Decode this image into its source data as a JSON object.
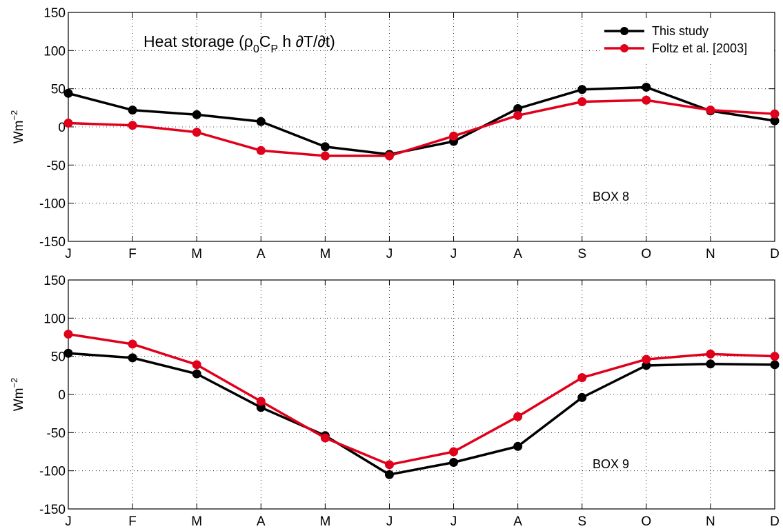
{
  "chart_data": [
    {
      "type": "line",
      "title_parts": {
        "main": "Heat storage (ρ",
        "sub1": "0",
        "c": "C",
        "sub2": "P",
        "rest": "h ∂T/∂t)"
      },
      "annotation": "BOX 8",
      "ylabel_base": "Wm",
      "ylabel_exp": "−2",
      "categories": [
        "J",
        "F",
        "M",
        "A",
        "M",
        "J",
        "J",
        "A",
        "S",
        "O",
        "N",
        "D"
      ],
      "ylim": [
        -150,
        150
      ],
      "yticks": [
        -150,
        -100,
        -50,
        0,
        50,
        100,
        150
      ],
      "grid": true,
      "legend": {
        "placement": "top-right"
      },
      "series": [
        {
          "name": "This study",
          "color": "#000000",
          "values": [
            44,
            22,
            16,
            7,
            -26,
            -36,
            -19,
            24,
            49,
            52,
            21,
            8
          ]
        },
        {
          "name": "Foltz et al. [2003]",
          "color": "#e0001b",
          "values": [
            5,
            2,
            -7,
            -31,
            -38,
            -38,
            -12,
            15,
            33,
            35,
            22,
            17
          ]
        }
      ]
    },
    {
      "type": "line",
      "annotation": "BOX 9",
      "ylabel_base": "Wm",
      "ylabel_exp": "−2",
      "categories": [
        "J",
        "F",
        "M",
        "A",
        "M",
        "J",
        "J",
        "A",
        "S",
        "O",
        "N",
        "D"
      ],
      "ylim": [
        -150,
        150
      ],
      "yticks": [
        -150,
        -100,
        -50,
        0,
        50,
        100,
        150
      ],
      "grid": true,
      "series": [
        {
          "name": "This study",
          "color": "#000000",
          "values": [
            54,
            48,
            27,
            -17,
            -54,
            -105,
            -89,
            -68,
            -4,
            38,
            40,
            39
          ]
        },
        {
          "name": "Foltz et al. [2003]",
          "color": "#e0001b",
          "values": [
            79,
            66,
            39,
            -9,
            -57,
            -92,
            -75,
            -29,
            22,
            46,
            53,
            50
          ]
        }
      ]
    }
  ]
}
